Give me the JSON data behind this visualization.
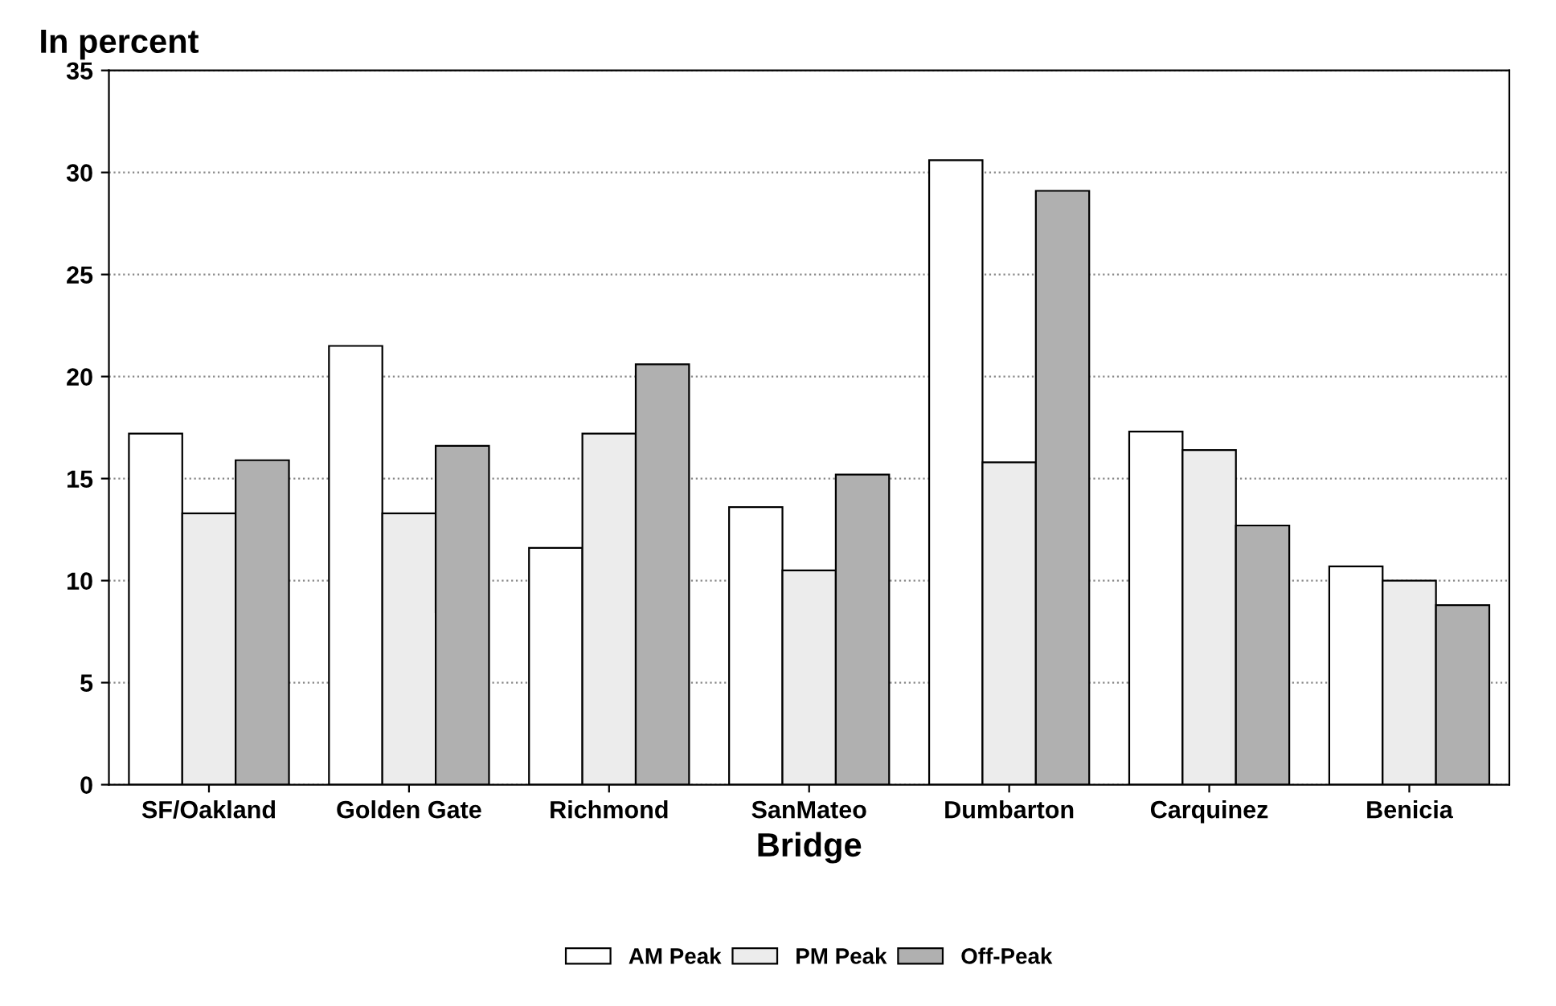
{
  "chart_data": {
    "type": "bar",
    "ylabel": "In percent",
    "xlabel": "Bridge",
    "categories": [
      "SF/Oakland",
      "Golden Gate",
      "Richmond",
      "SanMateo",
      "Dumbarton",
      "Carquinez",
      "Benicia"
    ],
    "series": [
      {
        "name": "AM Peak",
        "color": "#ffffff",
        "values": [
          17.2,
          21.5,
          11.6,
          13.6,
          30.6,
          17.3,
          10.7
        ]
      },
      {
        "name": "PM Peak",
        "color": "#ececec",
        "values": [
          13.3,
          13.3,
          17.2,
          10.5,
          15.8,
          16.4,
          10.0
        ]
      },
      {
        "name": "Off-Peak",
        "color": "#b0b0b0",
        "values": [
          15.9,
          16.6,
          20.6,
          15.2,
          29.1,
          12.7,
          8.8
        ]
      }
    ],
    "ylim": [
      0,
      35
    ],
    "yticks": [
      0,
      5,
      10,
      15,
      20,
      25,
      30,
      35
    ],
    "grid": "y",
    "legend": "bottom"
  }
}
